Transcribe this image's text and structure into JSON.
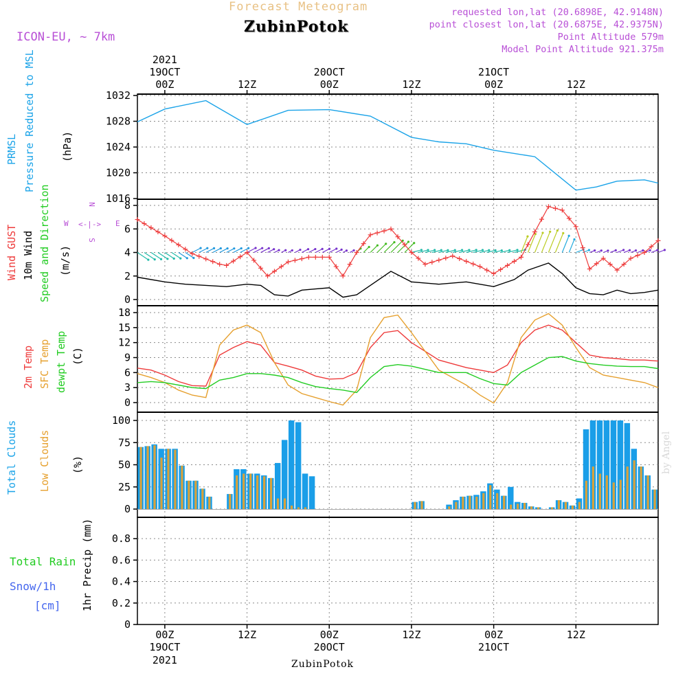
{
  "header": {
    "top_title": "Forecast Meteogram",
    "location": "ZubinPotok",
    "model": "ICON-EU, ~ 7km",
    "requested": "requested lon,lat (20.6898E, 42.9148N)",
    "closest": "point closest lon,lat (20.6875E, 42.9375N)",
    "altitude": "Point Altitude 579m",
    "model_altitude": "Model Point Altitude 921.375m"
  },
  "footer": {
    "location": "ZubinPotok",
    "credit": "by Angel"
  },
  "left_labels": {
    "prmsl": "PRMSL",
    "pressure_reduced": "Pressure Reduced to MSL",
    "hpa": "(hPa)",
    "wind_gust": "Wind GUST",
    "wind10m": "10m Wind",
    "speed_dir": "Speed and Direction",
    "ms": "(m/s)",
    "compass_w": "W",
    "compass_e": "E",
    "compass_n": "N",
    "compass_s": "S",
    "temp2m": "2m Temp",
    "sfc_temp": "SFC Temp",
    "dewpt": "dewpt Temp",
    "c_unit": "(C)",
    "total_clouds": "Total Clouds",
    "low_clouds": "Low Clouds",
    "pct": "(%)",
    "total_rain": "Total  Rain",
    "snow": "Snow/1h",
    "cm": "[cm]",
    "precip": "1hr Precip (mm)"
  },
  "colors": {
    "pressure": "#1aa3e8",
    "gust": "#ee3a3a",
    "wind": "#000000",
    "temp": "#ee3a3a",
    "sfc": "#e6a02e",
    "dewpt": "#22cc22",
    "total_cloud": "#1a9ee8",
    "low_cloud": "#d9a23a",
    "purple": "#b84fd6",
    "blue_label": "#4466ee"
  },
  "chart_data": [
    {
      "type": "line",
      "title": "PRMSL Pressure Reduced to MSL",
      "ylabel": "(hPa)",
      "x_hours": [
        -4,
        0,
        6,
        12,
        18,
        24,
        30,
        36,
        40,
        44,
        48,
        54,
        60,
        63,
        66,
        70,
        72
      ],
      "values": [
        1027.9,
        1029.9,
        1031.2,
        1027.5,
        1029.7,
        1029.8,
        1028.8,
        1025.5,
        1024.8,
        1024.5,
        1023.5,
        1022.5,
        1017.3,
        1017.8,
        1018.7,
        1018.9,
        1018.4
      ],
      "ylim": [
        1016,
        1032
      ],
      "yticks": [
        1016,
        1020,
        1024,
        1028,
        1032
      ]
    },
    {
      "type": "line",
      "title": "Wind GUST / 10m Wind Speed and Direction",
      "ylabel": "(m/s)",
      "ylim": [
        0,
        8
      ],
      "yticks": [
        0,
        2,
        4,
        6,
        8
      ],
      "series": [
        {
          "name": "Wind GUST",
          "x_hours": [
            -4,
            0,
            4,
            8,
            9,
            12,
            15,
            18,
            21,
            24,
            26,
            28,
            30,
            33,
            36,
            38,
            42,
            46,
            48,
            52,
            56,
            58,
            60,
            62,
            64,
            66,
            68,
            70,
            72
          ],
          "values": [
            6.8,
            5.4,
            3.9,
            3.0,
            2.9,
            4.0,
            2.0,
            3.2,
            3.6,
            3.6,
            2.0,
            4.0,
            5.5,
            6.0,
            4.0,
            3.0,
            3.7,
            2.8,
            2.2,
            3.6,
            7.9,
            7.6,
            6.2,
            2.6,
            3.5,
            2.5,
            3.5,
            4.0,
            5.0
          ]
        },
        {
          "name": "10m Wind",
          "x_hours": [
            -4,
            0,
            3,
            6,
            9,
            12,
            14,
            16,
            18,
            20,
            22,
            24,
            26,
            28,
            30,
            33,
            36,
            40,
            44,
            48,
            51,
            53,
            56,
            58,
            60,
            62,
            64,
            66,
            68,
            70,
            72
          ],
          "values": [
            1.9,
            1.5,
            1.3,
            1.2,
            1.1,
            1.3,
            1.2,
            0.4,
            0.3,
            0.8,
            0.9,
            1.0,
            0.2,
            0.4,
            1.2,
            2.4,
            1.5,
            1.3,
            1.5,
            1.1,
            1.7,
            2.5,
            3.1,
            2.2,
            1.0,
            0.5,
            0.4,
            0.8,
            0.5,
            0.6,
            0.8
          ]
        }
      ]
    },
    {
      "type": "line",
      "title": "2m Temp / SFC Temp / dewpt Temp",
      "ylabel": "(C)",
      "ylim": [
        -1,
        19
      ],
      "yticks": [
        0,
        3,
        6,
        9,
        12,
        15,
        18
      ],
      "series": [
        {
          "name": "2m Temp",
          "x_hours": [
            -4,
            -2,
            0,
            2,
            4,
            6,
            8,
            10,
            12,
            14,
            16,
            18,
            20,
            22,
            24,
            26,
            28,
            30,
            32,
            34,
            36,
            40,
            44,
            46,
            48,
            50,
            52,
            54,
            56,
            58,
            60,
            62,
            64,
            66,
            68,
            70,
            72
          ],
          "values": [
            6.9,
            6.5,
            5.5,
            4.2,
            3.4,
            3.3,
            9.5,
            11.0,
            12.2,
            11.5,
            8.0,
            7.3,
            6.5,
            5.3,
            4.7,
            4.8,
            6.0,
            11.0,
            14.0,
            14.4,
            12.0,
            8.5,
            7.0,
            6.5,
            6.0,
            7.5,
            12.0,
            14.5,
            15.5,
            14.5,
            12.0,
            9.5,
            9.0,
            8.8,
            8.5,
            8.5,
            8.3
          ]
        },
        {
          "name": "SFC Temp",
          "x_hours": [
            -4,
            -2,
            0,
            2,
            4,
            6,
            8,
            10,
            12,
            14,
            16,
            18,
            20,
            22,
            24,
            26,
            28,
            30,
            32,
            34,
            36,
            40,
            44,
            46,
            48,
            50,
            52,
            54,
            56,
            58,
            60,
            62,
            64,
            66,
            68,
            70,
            72
          ],
          "values": [
            5.8,
            5.0,
            4.0,
            2.5,
            1.5,
            1.0,
            11.5,
            14.5,
            15.5,
            14.0,
            8.0,
            3.5,
            1.8,
            1.0,
            0.2,
            -0.5,
            2.5,
            13.0,
            17.0,
            17.5,
            14.0,
            6.5,
            3.5,
            1.5,
            -0.1,
            4.0,
            13.0,
            16.5,
            17.8,
            15.5,
            11.0,
            7.0,
            5.5,
            5.0,
            4.5,
            4.0,
            3.0
          ]
        },
        {
          "name": "dewpt Temp",
          "x_hours": [
            -4,
            -2,
            0,
            2,
            4,
            6,
            8,
            10,
            12,
            14,
            16,
            18,
            20,
            22,
            24,
            26,
            28,
            30,
            32,
            34,
            36,
            40,
            44,
            46,
            48,
            50,
            52,
            54,
            56,
            58,
            60,
            62,
            64,
            66,
            68,
            70,
            72
          ],
          "values": [
            4.0,
            4.2,
            4.0,
            3.5,
            3.0,
            2.8,
            4.5,
            5.0,
            5.8,
            5.8,
            5.5,
            5.0,
            4.0,
            3.2,
            2.8,
            2.5,
            2.0,
            5.0,
            7.2,
            7.6,
            7.3,
            6.0,
            6.0,
            4.8,
            3.8,
            3.5,
            6.0,
            7.5,
            9.0,
            9.2,
            8.3,
            7.8,
            7.5,
            7.3,
            7.2,
            7.2,
            6.8
          ]
        }
      ]
    },
    {
      "type": "bar",
      "title": "Total Clouds / Low Clouds",
      "ylabel": "(%)",
      "ylim": [
        0,
        100
      ],
      "yticks": [
        0,
        25,
        50,
        75,
        100
      ],
      "x_start_hour": -4,
      "series": [
        {
          "name": "Total Clouds",
          "values": [
            70,
            71,
            73,
            68,
            68,
            68,
            49,
            32,
            32,
            23,
            14,
            0,
            0,
            17,
            45,
            45,
            40,
            40,
            38,
            35,
            52,
            78,
            100,
            98,
            40,
            37,
            0,
            0,
            0,
            0,
            0,
            0,
            0,
            0,
            0,
            0,
            0,
            0,
            0,
            0,
            8,
            9,
            0,
            0,
            0,
            5,
            10,
            14,
            15,
            16,
            20,
            29,
            22,
            15,
            25,
            8,
            7,
            3,
            2,
            0,
            2,
            10,
            8,
            4,
            12,
            90,
            100,
            100,
            100,
            100,
            100,
            97,
            68,
            48,
            38,
            22
          ]
        },
        {
          "name": "Low Clouds",
          "values": [
            70,
            71,
            72,
            58,
            68,
            67,
            49,
            32,
            32,
            23,
            14,
            0,
            0,
            17,
            38,
            40,
            40,
            38,
            37,
            35,
            12,
            12,
            4,
            2,
            2,
            0,
            0,
            0,
            0,
            0,
            0,
            0,
            0,
            0,
            0,
            0,
            0,
            0,
            0,
            0,
            8,
            9,
            0,
            0,
            0,
            3,
            8,
            14,
            15,
            14,
            18,
            27,
            18,
            15,
            5,
            6,
            7,
            3,
            2,
            0,
            2,
            10,
            8,
            4,
            8,
            32,
            48,
            40,
            38,
            30,
            33,
            48,
            55,
            48,
            38,
            22
          ]
        }
      ]
    },
    {
      "type": "bar",
      "title": "Total Rain / Snow/1h",
      "ylabel": "1hr Precip (mm)",
      "ylim": [
        0,
        1
      ],
      "yticks": [
        0,
        0.2,
        0.4,
        0.6,
        0.8
      ],
      "values": []
    }
  ],
  "time_axis": {
    "start_hour": -4,
    "end_hour": 72,
    "ticks": [
      {
        "hour": 0,
        "label": "00Z",
        "day": "19OCT",
        "year": "2021"
      },
      {
        "hour": 12,
        "label": "12Z",
        "day": "",
        "year": ""
      },
      {
        "hour": 24,
        "label": "00Z",
        "day": "20OCT",
        "year": ""
      },
      {
        "hour": 36,
        "label": "12Z",
        "day": "",
        "year": ""
      },
      {
        "hour": 48,
        "label": "00Z",
        "day": "21OCT",
        "year": ""
      },
      {
        "hour": 60,
        "label": "12Z",
        "day": "",
        "year": ""
      }
    ]
  }
}
